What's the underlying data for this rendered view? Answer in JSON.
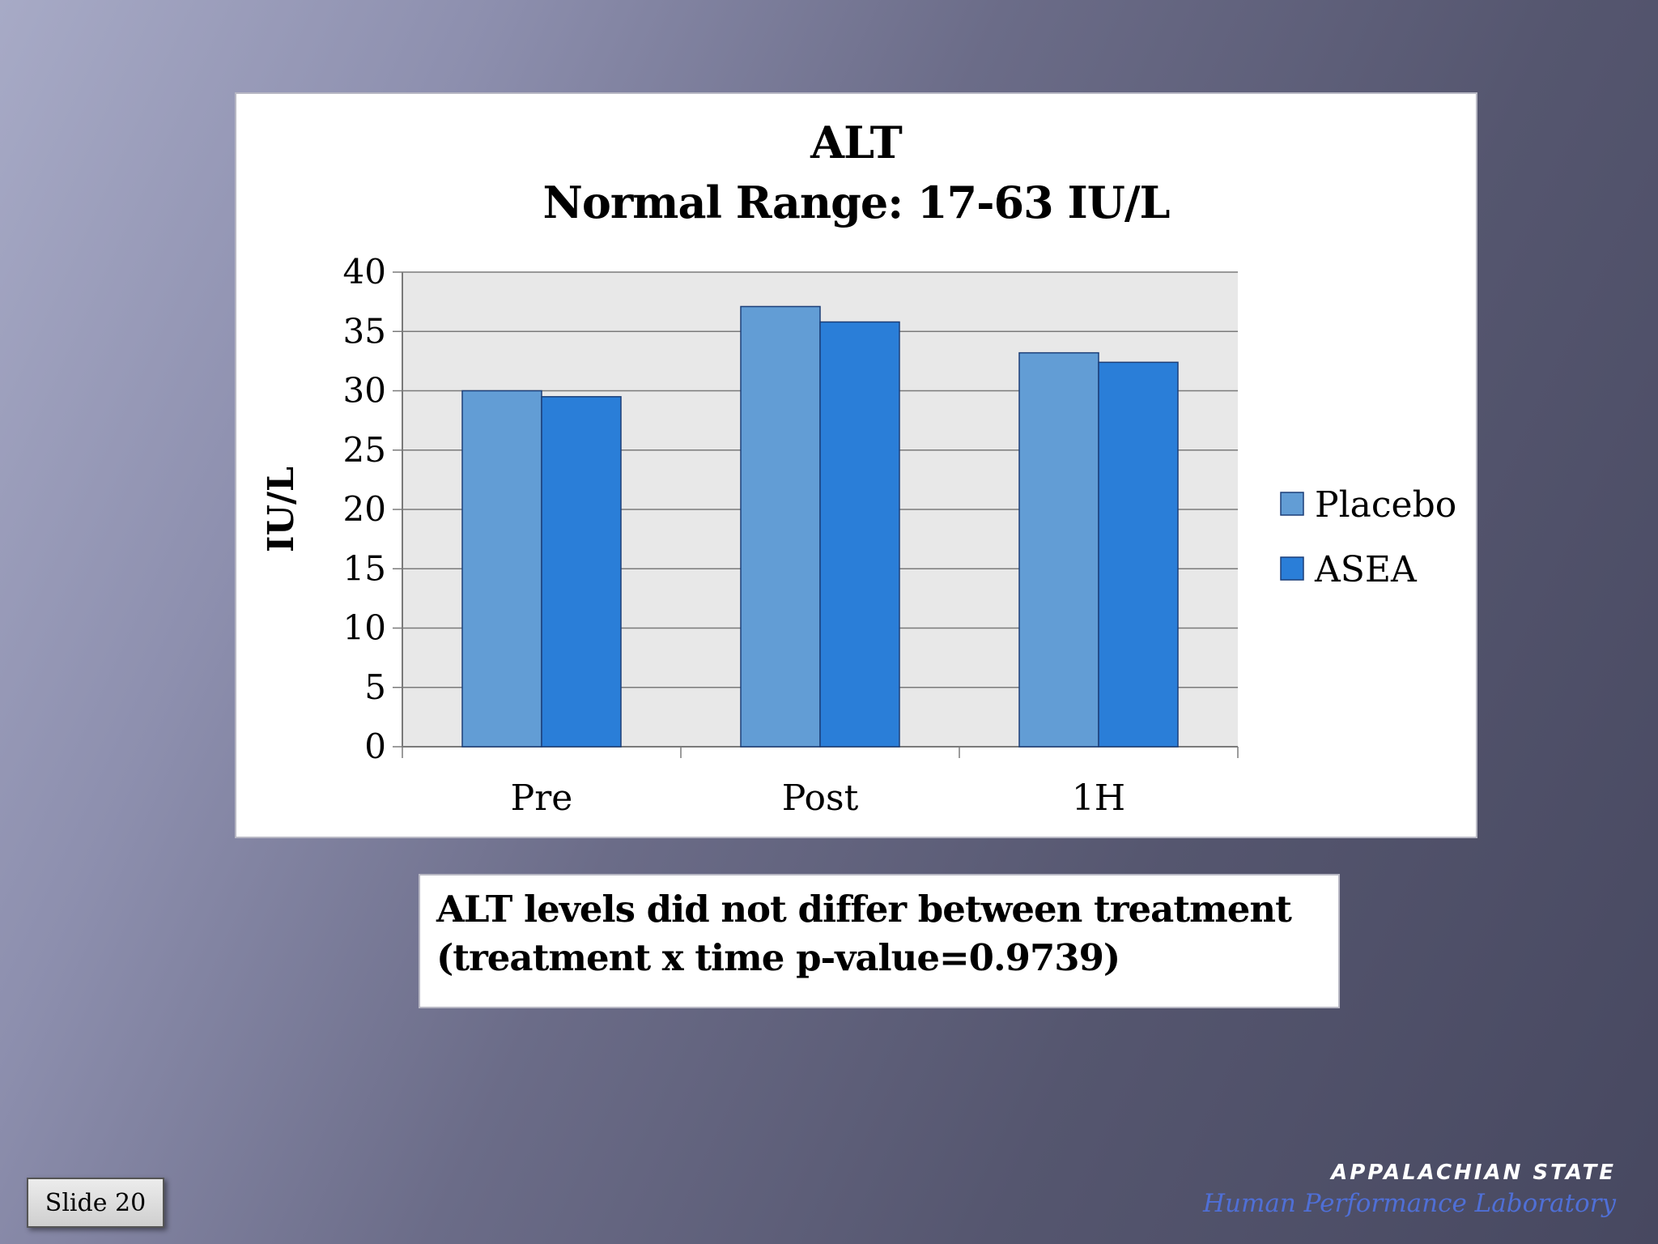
{
  "slide": {
    "number_label": "Slide 20",
    "note_lines": [
      "ALT levels did not differ between treatment",
      "(treatment x time p-value=0.9739)"
    ],
    "logo_main": "APPALACHIAN STATE",
    "logo_sub": "Human Performance Laboratory"
  },
  "chart_data": {
    "type": "bar",
    "title": "ALT",
    "subtitle": "Normal Range: 17-63 IU/L",
    "xlabel": "",
    "ylabel": "IU/L",
    "ylim": [
      0,
      40
    ],
    "yticks": [
      0,
      5,
      10,
      15,
      20,
      25,
      30,
      35,
      40
    ],
    "categories": [
      "Pre",
      "Post",
      "1H"
    ],
    "series": [
      {
        "name": "Placebo",
        "values": [
          30.0,
          37.1,
          33.2
        ],
        "color": "#629dd5"
      },
      {
        "name": "ASEA",
        "values": [
          29.5,
          35.8,
          32.4
        ],
        "color": "#2a7ed8"
      }
    ],
    "grid": true,
    "plot_background": "#e8e8e8",
    "legend_position": "right"
  }
}
